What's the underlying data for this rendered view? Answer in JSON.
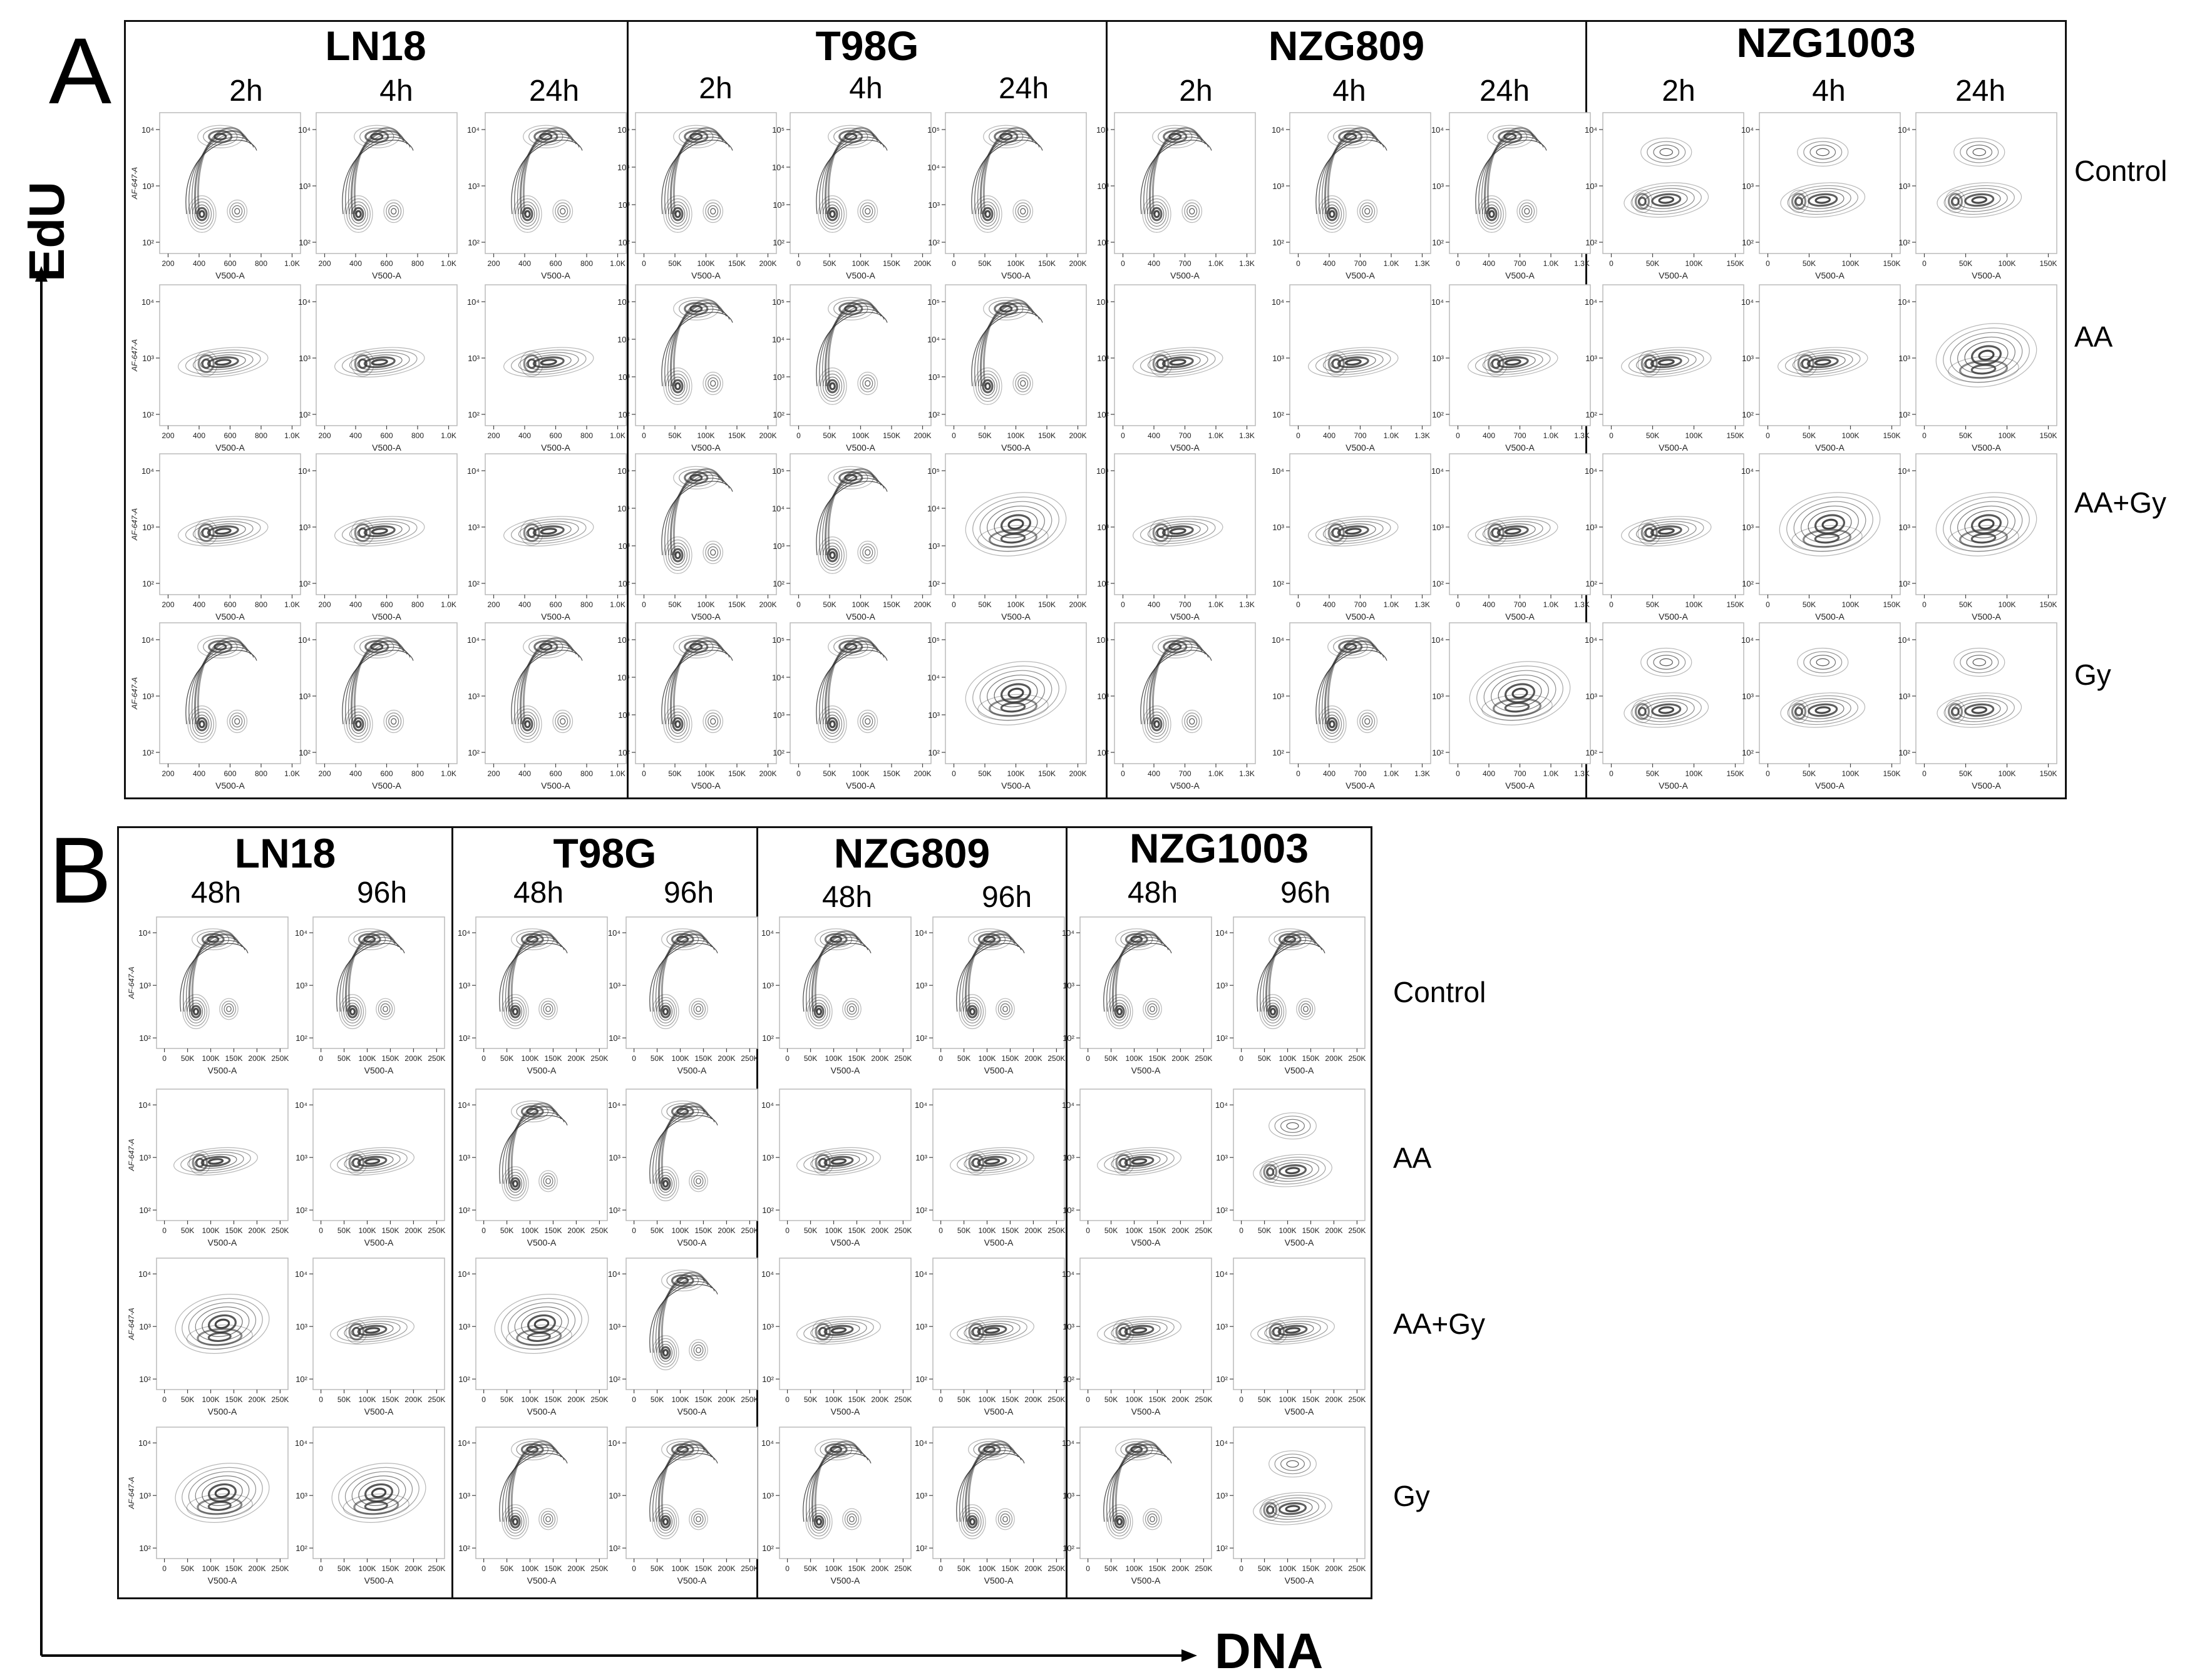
{
  "panel_a": {
    "letter": "A",
    "cell_lines": [
      {
        "name": "LN18",
        "times": [
          "2h",
          "4h",
          "24h"
        ],
        "xticks": [
          "200",
          "400",
          "600",
          "800",
          "1.0K"
        ],
        "yticks": [
          "10⁴",
          "10³",
          "10²"
        ],
        "ylabel": "AF-647-A",
        "xlabel": "V500-A"
      },
      {
        "name": "T98G",
        "times": [
          "2h",
          "4h",
          "24h"
        ],
        "xticks": [
          "0",
          "50K",
          "100K",
          "150K",
          "200K"
        ],
        "yticks": [
          "10⁵",
          "10⁴",
          "10³",
          "10²"
        ],
        "ylabel": "",
        "xlabel": "V500-A"
      },
      {
        "name": "NZG809",
        "times": [
          "2h",
          "4h",
          "24h"
        ],
        "xticks": [
          "0",
          "400",
          "700",
          "1.0K",
          "1.3K"
        ],
        "yticks": [
          "10⁴",
          "10³",
          "10²"
        ],
        "ylabel": "",
        "xlabel": "V500-A"
      },
      {
        "name": "NZG1003",
        "times": [
          "2h",
          "4h",
          "24h"
        ],
        "xticks": [
          "0",
          "50K",
          "100K",
          "150K"
        ],
        "yticks": [
          "10⁴",
          "10³",
          "10²"
        ],
        "ylabel": "",
        "xlabel": "V500-A"
      }
    ],
    "conditions": [
      "Control",
      "AA",
      "AA+Gy",
      "Gy"
    ]
  },
  "panel_b": {
    "letter": "B",
    "cell_lines": [
      {
        "name": "LN18",
        "times": [
          "48h",
          "96h"
        ],
        "xticks": [
          "0",
          "50K",
          "100K",
          "150K",
          "200K",
          "250K"
        ],
        "yticks": [
          "10⁴",
          "10³",
          "10²"
        ],
        "ylabel": "AF-647-A",
        "xlabel": "V500-A"
      },
      {
        "name": "T98G",
        "times": [
          "48h",
          "96h"
        ],
        "xticks": [
          "0",
          "50K",
          "100K",
          "150K",
          "200K",
          "250K"
        ],
        "yticks": [
          "10⁴",
          "10³",
          "10²"
        ],
        "ylabel": "",
        "xlabel": "V500-A"
      },
      {
        "name": "NZG809",
        "times": [
          "48h",
          "96h"
        ],
        "xticks": [
          "0",
          "50K",
          "100K",
          "150K",
          "200K",
          "250K"
        ],
        "yticks": [
          "10⁴",
          "10³",
          "10²"
        ],
        "ylabel": "",
        "xlabel": "V500-A"
      },
      {
        "name": "NZG1003",
        "times": [
          "48h",
          "96h"
        ],
        "xticks": [
          "0",
          "50K",
          "100K",
          "150K",
          "200K",
          "250K"
        ],
        "yticks": [
          "10⁴",
          "10³",
          "10²"
        ],
        "ylabel": "",
        "xlabel": "V500-A"
      }
    ],
    "conditions": [
      "Control",
      "AA",
      "AA+Gy",
      "Gy"
    ]
  },
  "axes": {
    "y_label": "EdU",
    "x_label": "DNA"
  },
  "colors": {
    "contour": "#333333",
    "frame": "#111111"
  }
}
